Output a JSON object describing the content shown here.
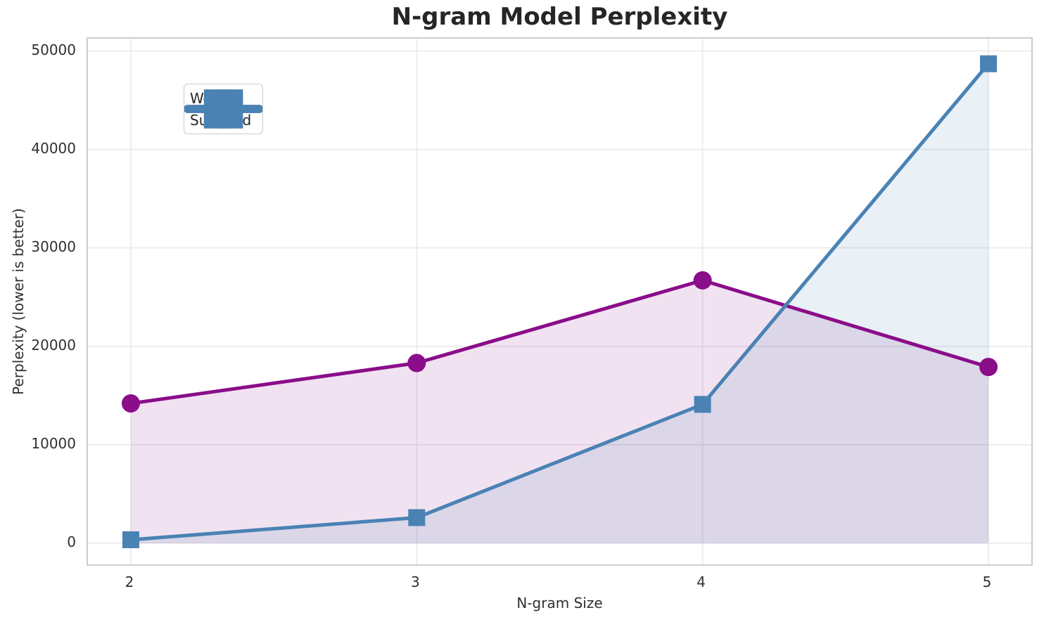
{
  "chart_data": {
    "type": "line",
    "title": "N-gram Model Perplexity",
    "xlabel": "N-gram Size",
    "ylabel": "Perplexity (lower is better)",
    "x": [
      2,
      3,
      4,
      5
    ],
    "series": [
      {
        "name": "Word",
        "marker": "circle",
        "color": "#8a0d8a",
        "values": [
          14200,
          18300,
          26700,
          17900
        ]
      },
      {
        "name": "Subword",
        "marker": "square",
        "color": "#4a82b4",
        "values": [
          350,
          2600,
          14100,
          48700
        ]
      }
    ],
    "xticks": [
      2,
      3,
      4,
      5
    ],
    "yticks": [
      0,
      10000,
      20000,
      30000,
      40000,
      50000
    ],
    "xlim": [
      1.85,
      5.15
    ],
    "ylim": [
      -2150,
      51250
    ],
    "grid": true,
    "grid_color": "#ebebeb",
    "fill": "to-zero",
    "fill_opacity": 0.12,
    "legend_position": "upper left"
  }
}
